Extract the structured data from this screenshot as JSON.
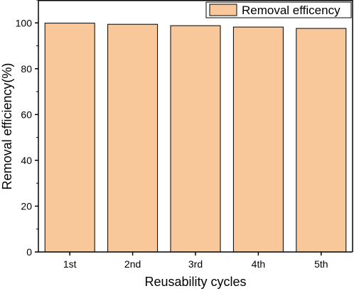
{
  "chart_data": {
    "type": "bar",
    "title": "",
    "xlabel": "Reusability cycles",
    "ylabel": "Removal efficiency(%)",
    "categories": [
      "1st",
      "2nd",
      "3rd",
      "4th",
      "5th"
    ],
    "series": [
      {
        "name": "Removal efficency",
        "values": [
          99.9,
          99.4,
          98.8,
          98.2,
          97.6
        ]
      }
    ],
    "ylim": [
      0,
      110
    ],
    "yticks": [
      0,
      20,
      40,
      60,
      80,
      100
    ],
    "grid": false,
    "legend": "top-right",
    "colors": {
      "bar_fill": "#F9C89A",
      "bar_stroke": "#000000",
      "axis": "#000000"
    }
  }
}
